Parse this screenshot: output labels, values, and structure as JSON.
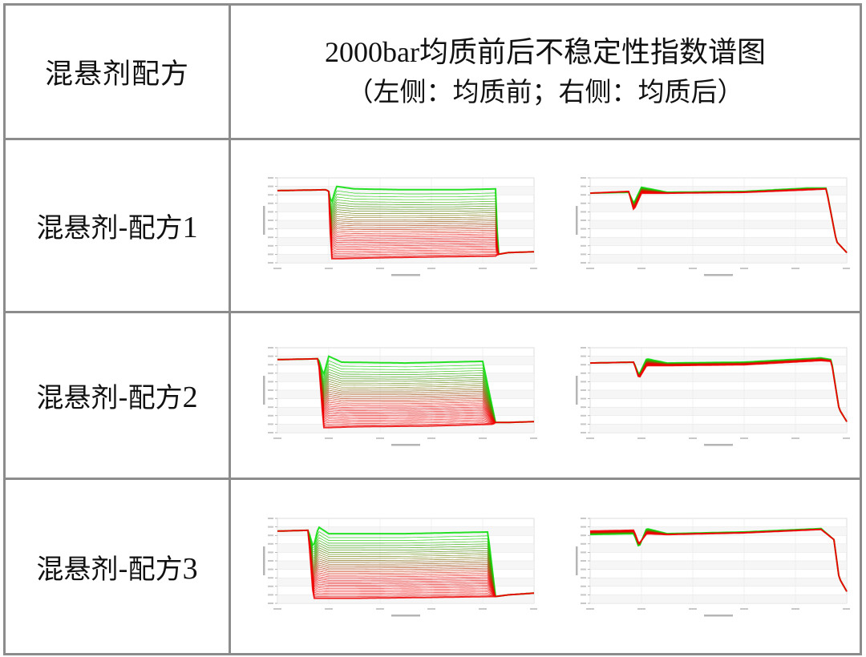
{
  "table": {
    "header": {
      "left": "混悬剂配方",
      "right_line1": "2000bar均质前后不稳定性指数谱图",
      "right_line2": "（左侧：均质前；右侧：均质后）"
    },
    "rows": [
      {
        "label": "混悬剂-配方",
        "num": "1"
      },
      {
        "label": "混悬剂-配方",
        "num": "2"
      },
      {
        "label": "混悬剂-配方",
        "num": "3"
      }
    ]
  },
  "colors": {
    "early_scan": "#00dd00",
    "late_scan": "#ee0000",
    "border": "#8c8c8c",
    "grid": "#e4e4e4"
  },
  "chart_data": [
    {
      "formulation": "混悬剂-配方1",
      "panel": "均质前",
      "type": "line",
      "xlabel": "Position in mm",
      "ylabel": "Transmission in %",
      "ylim": [
        0,
        100
      ],
      "grid": true,
      "description": "Transmission profiles over time; suspension region collapses from ~85% (green, initial) to ~5-60% (red, later scans) between ~20% and ~85% of the cell position",
      "series": [
        {
          "name": "initial scan (green)",
          "x": [
            0,
            0.19,
            0.2,
            0.21,
            0.23,
            0.3,
            0.5,
            0.7,
            0.85,
            0.86,
            0.9,
            1.0
          ],
          "y": [
            85,
            86,
            84,
            70,
            90,
            87,
            86,
            86,
            87,
            10,
            12,
            13
          ]
        },
        {
          "name": "final scan (red)",
          "x": [
            0,
            0.19,
            0.2,
            0.21,
            0.25,
            0.4,
            0.6,
            0.85,
            0.86,
            0.9,
            1.0
          ],
          "y": [
            85,
            86,
            84,
            5,
            5,
            6,
            7,
            8,
            10,
            12,
            13
          ]
        }
      ]
    },
    {
      "formulation": "混悬剂-配方1",
      "panel": "均质后",
      "type": "line",
      "xlabel": "Position in mm",
      "ylabel": "Transmission in %",
      "ylim": [
        0,
        100
      ],
      "grid": true,
      "series": [
        {
          "name": "initial scan (green)",
          "x": [
            0,
            0.15,
            0.17,
            0.2,
            0.3,
            0.6,
            0.85,
            0.92,
            0.96,
            1.0
          ],
          "y": [
            82,
            83,
            70,
            89,
            83,
            84,
            88,
            88,
            25,
            12
          ]
        },
        {
          "name": "final scan (red)",
          "x": [
            0,
            0.15,
            0.17,
            0.2,
            0.3,
            0.6,
            0.85,
            0.92,
            0.96,
            1.0
          ],
          "y": [
            82,
            84,
            62,
            82,
            82,
            83,
            86,
            87,
            25,
            12
          ]
        }
      ]
    },
    {
      "formulation": "混悬剂-配方2",
      "panel": "均质前",
      "type": "line",
      "xlabel": "Position in mm",
      "ylabel": "Transmission in %",
      "ylim": [
        0,
        100
      ],
      "grid": true,
      "series": [
        {
          "name": "initial scan (green)",
          "x": [
            0,
            0.16,
            0.18,
            0.2,
            0.25,
            0.5,
            0.8,
            0.85,
            0.9,
            1.0
          ],
          "y": [
            86,
            87,
            68,
            90,
            83,
            82,
            84,
            12,
            12,
            13
          ]
        },
        {
          "name": "final scan (red)",
          "x": [
            0,
            0.16,
            0.18,
            0.2,
            0.3,
            0.6,
            0.84,
            0.85,
            0.9,
            1.0
          ],
          "y": [
            86,
            87,
            6,
            6,
            7,
            8,
            10,
            12,
            12,
            13
          ]
        }
      ]
    },
    {
      "formulation": "混悬剂-配方2",
      "panel": "均质后",
      "type": "line",
      "xlabel": "Position in mm",
      "ylabel": "Transmission in %",
      "ylim": [
        0,
        100
      ],
      "grid": true,
      "series": [
        {
          "name": "initial scan (green)",
          "x": [
            0,
            0.17,
            0.19,
            0.22,
            0.3,
            0.6,
            0.9,
            0.94,
            0.97,
            1.0
          ],
          "y": [
            82,
            83,
            68,
            87,
            82,
            83,
            88,
            86,
            28,
            13
          ]
        },
        {
          "name": "final scan (red)",
          "x": [
            0,
            0.17,
            0.19,
            0.22,
            0.3,
            0.6,
            0.9,
            0.94,
            0.97,
            1.0
          ],
          "y": [
            82,
            83,
            64,
            79,
            79,
            80,
            85,
            84,
            28,
            13
          ]
        }
      ]
    },
    {
      "formulation": "混悬剂-配方3",
      "panel": "均质前",
      "type": "line",
      "xlabel": "Position in mm",
      "ylabel": "Transmission in %",
      "ylim": [
        0,
        100
      ],
      "grid": true,
      "series": [
        {
          "name": "initial scan (green)",
          "x": [
            0,
            0.12,
            0.14,
            0.16,
            0.2,
            0.5,
            0.82,
            0.85,
            0.9,
            1.0
          ],
          "y": [
            85,
            86,
            66,
            90,
            82,
            82,
            84,
            8,
            10,
            12
          ]
        },
        {
          "name": "final scan (red)",
          "x": [
            0,
            0.12,
            0.14,
            0.16,
            0.3,
            0.6,
            0.82,
            0.85,
            0.9,
            1.0
          ],
          "y": [
            85,
            86,
            6,
            6,
            6,
            7,
            8,
            8,
            10,
            12
          ]
        }
      ]
    },
    {
      "formulation": "混悬剂-配方3",
      "panel": "均质后",
      "type": "line",
      "xlabel": "Position in mm",
      "ylabel": "Transmission in %",
      "ylim": [
        0,
        100
      ],
      "grid": true,
      "series": [
        {
          "name": "initial scan (green)",
          "x": [
            0,
            0.17,
            0.19,
            0.22,
            0.3,
            0.6,
            0.9,
            0.95,
            0.97,
            1.0
          ],
          "y": [
            81,
            82,
            66,
            88,
            82,
            84,
            88,
            75,
            30,
            14
          ]
        },
        {
          "name": "final scan (red)",
          "x": [
            0,
            0.17,
            0.19,
            0.22,
            0.3,
            0.6,
            0.9,
            0.95,
            0.97,
            1.0
          ],
          "y": [
            85,
            86,
            70,
            82,
            81,
            83,
            87,
            75,
            30,
            14
          ]
        }
      ]
    }
  ]
}
